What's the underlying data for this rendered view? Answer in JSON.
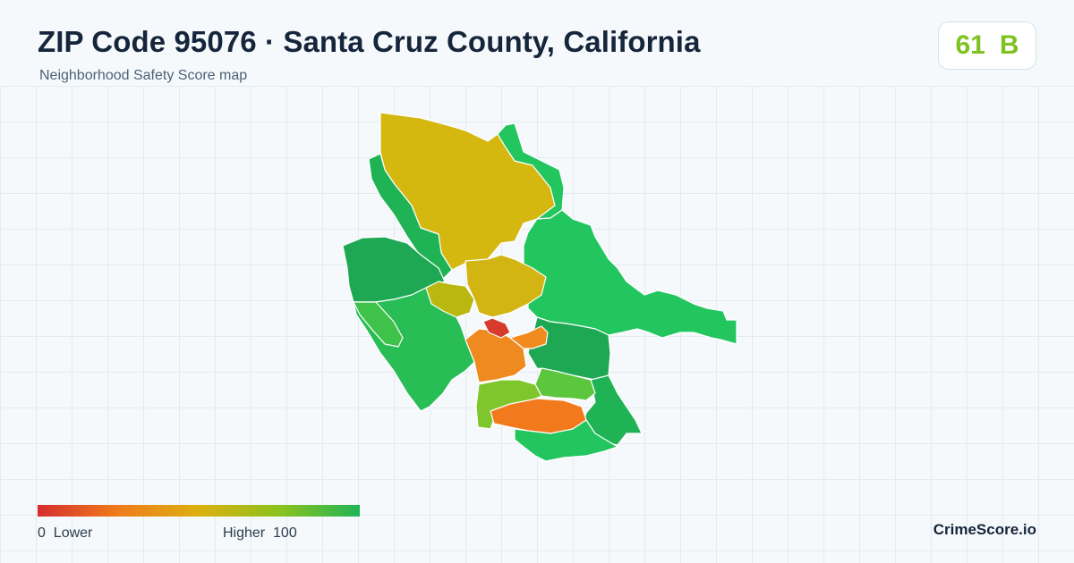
{
  "header": {
    "title": "ZIP Code 95076 · Santa Cruz County, California",
    "subtitle": "Neighborhood Safety Score map"
  },
  "score": {
    "value": "61",
    "grade": "B",
    "color": "#7dc21f"
  },
  "legend": {
    "min": "0",
    "low_label": "Lower",
    "high_label": "Higher",
    "max": "100",
    "colors": [
      "#d62e2e",
      "#ef7c1c",
      "#dcb010",
      "#8cc21e",
      "#20b455"
    ]
  },
  "brand": "CrimeScore.io",
  "map": {
    "regions": [
      {
        "name": "north-forest",
        "color": "#d4b80f"
      },
      {
        "name": "northeast-ridge",
        "color": "#22c55e"
      },
      {
        "name": "northwest-strip",
        "color": "#1fb356"
      },
      {
        "name": "west-hills",
        "color": "#1ea853"
      },
      {
        "name": "southwest-coast",
        "color": "#29bd55"
      },
      {
        "name": "west-coast-small",
        "color": "#3fc24a"
      },
      {
        "name": "east-large",
        "color": "#22c55e"
      },
      {
        "name": "east-lower",
        "color": "#1ea853"
      },
      {
        "name": "southeast-coast",
        "color": "#1fb356"
      },
      {
        "name": "south-green",
        "color": "#5cc63c"
      },
      {
        "name": "south-orange",
        "color": "#f27a1d"
      },
      {
        "name": "southwest-lime",
        "color": "#7fc62c"
      },
      {
        "name": "center-orange",
        "color": "#ef8a20"
      },
      {
        "name": "center-east-orange",
        "color": "#f28b1e"
      },
      {
        "name": "center-olive",
        "color": "#b9b810"
      },
      {
        "name": "center-gold",
        "color": "#d2b413"
      },
      {
        "name": "core-red",
        "color": "#d83b2b"
      },
      {
        "name": "south-coast-green",
        "color": "#22c55e"
      }
    ]
  }
}
